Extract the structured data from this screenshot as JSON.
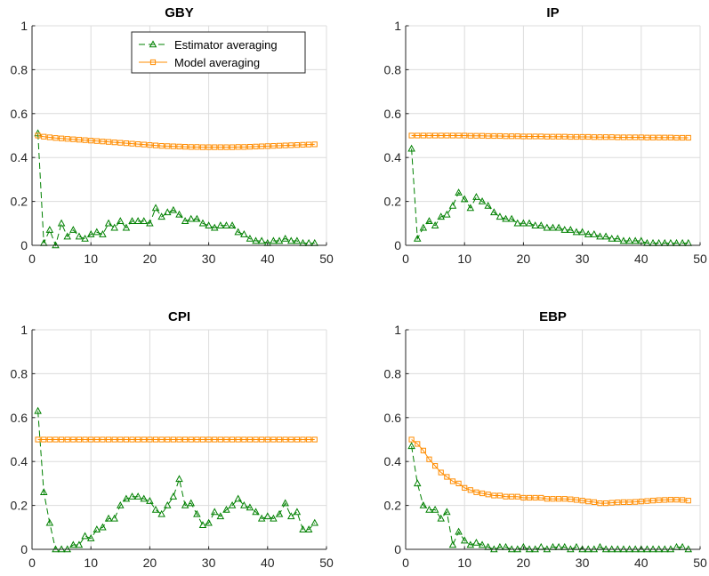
{
  "chart_data": [
    {
      "type": "line",
      "title": "GBY",
      "xlim": [
        0,
        50
      ],
      "ylim": [
        0,
        1
      ],
      "xticks": [
        0,
        10,
        20,
        30,
        40,
        50
      ],
      "yticks": [
        0,
        0.2,
        0.4,
        0.6,
        0.8,
        1
      ],
      "xtick_labels": [
        "0",
        "10",
        "20",
        "30",
        "40",
        "50"
      ],
      "ytick_labels": [
        "0",
        "0.2",
        "0.4",
        "0.6",
        "0.8",
        "1"
      ],
      "grid": true,
      "legend": {
        "show": true,
        "placement": "top-right"
      },
      "x": [
        1,
        2,
        3,
        4,
        5,
        6,
        7,
        8,
        9,
        10,
        11,
        12,
        13,
        14,
        15,
        16,
        17,
        18,
        19,
        20,
        21,
        22,
        23,
        24,
        25,
        26,
        27,
        28,
        29,
        30,
        31,
        32,
        33,
        34,
        35,
        36,
        37,
        38,
        39,
        40,
        41,
        42,
        43,
        44,
        45,
        46,
        47,
        48
      ],
      "series": [
        {
          "name": "Estimator averaging",
          "color": "#008000",
          "marker": "triangle",
          "linestyle": "dashed",
          "values": [
            0.51,
            0.01,
            0.07,
            0.0,
            0.1,
            0.04,
            0.07,
            0.04,
            0.03,
            0.05,
            0.06,
            0.05,
            0.1,
            0.08,
            0.11,
            0.08,
            0.11,
            0.11,
            0.11,
            0.1,
            0.17,
            0.13,
            0.15,
            0.16,
            0.14,
            0.11,
            0.12,
            0.12,
            0.1,
            0.09,
            0.08,
            0.09,
            0.09,
            0.09,
            0.06,
            0.05,
            0.03,
            0.02,
            0.02,
            0.01,
            0.02,
            0.02,
            0.03,
            0.02,
            0.02,
            0.01,
            0.01,
            0.01
          ]
        },
        {
          "name": "Model averaging",
          "color": "#ff8c00",
          "marker": "square",
          "linestyle": "solid",
          "values": [
            0.5,
            0.495,
            0.492,
            0.489,
            0.487,
            0.485,
            0.483,
            0.481,
            0.479,
            0.477,
            0.475,
            0.473,
            0.471,
            0.469,
            0.467,
            0.465,
            0.463,
            0.461,
            0.459,
            0.457,
            0.455,
            0.453,
            0.452,
            0.451,
            0.45,
            0.449,
            0.448,
            0.448,
            0.447,
            0.447,
            0.447,
            0.447,
            0.447,
            0.447,
            0.448,
            0.448,
            0.449,
            0.45,
            0.451,
            0.452,
            0.453,
            0.454,
            0.455,
            0.456,
            0.457,
            0.458,
            0.459,
            0.46
          ]
        }
      ]
    },
    {
      "type": "line",
      "title": "IP",
      "xlim": [
        0,
        50
      ],
      "ylim": [
        0,
        1
      ],
      "xticks": [
        0,
        10,
        20,
        30,
        40,
        50
      ],
      "yticks": [
        0,
        0.2,
        0.4,
        0.6,
        0.8,
        1
      ],
      "xtick_labels": [
        "0",
        "10",
        "20",
        "30",
        "40",
        "50"
      ],
      "ytick_labels": [
        "0",
        "0.2",
        "0.4",
        "0.6",
        "0.8",
        "1"
      ],
      "grid": true,
      "legend": {
        "show": false
      },
      "x": [
        1,
        2,
        3,
        4,
        5,
        6,
        7,
        8,
        9,
        10,
        11,
        12,
        13,
        14,
        15,
        16,
        17,
        18,
        19,
        20,
        21,
        22,
        23,
        24,
        25,
        26,
        27,
        28,
        29,
        30,
        31,
        32,
        33,
        34,
        35,
        36,
        37,
        38,
        39,
        40,
        41,
        42,
        43,
        44,
        45,
        46,
        47,
        48
      ],
      "series": [
        {
          "name": "Estimator averaging",
          "color": "#008000",
          "marker": "triangle",
          "linestyle": "dashed",
          "values": [
            0.44,
            0.03,
            0.08,
            0.11,
            0.09,
            0.13,
            0.14,
            0.18,
            0.24,
            0.21,
            0.17,
            0.22,
            0.2,
            0.18,
            0.15,
            0.13,
            0.12,
            0.12,
            0.1,
            0.1,
            0.1,
            0.09,
            0.09,
            0.08,
            0.08,
            0.08,
            0.07,
            0.07,
            0.06,
            0.06,
            0.05,
            0.05,
            0.04,
            0.04,
            0.03,
            0.03,
            0.02,
            0.02,
            0.02,
            0.02,
            0.01,
            0.01,
            0.01,
            0.01,
            0.01,
            0.01,
            0.01,
            0.01
          ]
        },
        {
          "name": "Model averaging",
          "color": "#ff8c00",
          "marker": "square",
          "linestyle": "solid",
          "values": [
            0.5,
            0.5,
            0.5,
            0.5,
            0.5,
            0.5,
            0.5,
            0.5,
            0.5,
            0.5,
            0.499,
            0.499,
            0.499,
            0.498,
            0.498,
            0.498,
            0.497,
            0.497,
            0.497,
            0.496,
            0.496,
            0.496,
            0.496,
            0.495,
            0.495,
            0.495,
            0.495,
            0.494,
            0.494,
            0.494,
            0.494,
            0.493,
            0.493,
            0.493,
            0.493,
            0.492,
            0.492,
            0.492,
            0.492,
            0.492,
            0.491,
            0.491,
            0.491,
            0.491,
            0.491,
            0.49,
            0.49,
            0.49
          ]
        }
      ]
    },
    {
      "type": "line",
      "title": "CPI",
      "xlim": [
        0,
        50
      ],
      "ylim": [
        0,
        1
      ],
      "xticks": [
        0,
        10,
        20,
        30,
        40,
        50
      ],
      "yticks": [
        0,
        0.2,
        0.4,
        0.6,
        0.8,
        1
      ],
      "xtick_labels": [
        "0",
        "10",
        "20",
        "30",
        "40",
        "50"
      ],
      "ytick_labels": [
        "0",
        "0.2",
        "0.4",
        "0.6",
        "0.8",
        "1"
      ],
      "grid": true,
      "legend": {
        "show": false
      },
      "x": [
        1,
        2,
        3,
        4,
        5,
        6,
        7,
        8,
        9,
        10,
        11,
        12,
        13,
        14,
        15,
        16,
        17,
        18,
        19,
        20,
        21,
        22,
        23,
        24,
        25,
        26,
        27,
        28,
        29,
        30,
        31,
        32,
        33,
        34,
        35,
        36,
        37,
        38,
        39,
        40,
        41,
        42,
        43,
        44,
        45,
        46,
        47,
        48
      ],
      "series": [
        {
          "name": "Estimator averaging",
          "color": "#008000",
          "marker": "triangle",
          "linestyle": "dashed",
          "values": [
            0.63,
            0.26,
            0.12,
            0.0,
            0.0,
            0.0,
            0.02,
            0.02,
            0.06,
            0.05,
            0.09,
            0.1,
            0.14,
            0.14,
            0.2,
            0.23,
            0.24,
            0.24,
            0.23,
            0.22,
            0.18,
            0.16,
            0.2,
            0.24,
            0.32,
            0.2,
            0.21,
            0.16,
            0.11,
            0.12,
            0.17,
            0.15,
            0.18,
            0.2,
            0.23,
            0.2,
            0.19,
            0.17,
            0.14,
            0.15,
            0.14,
            0.16,
            0.21,
            0.15,
            0.17,
            0.09,
            0.09,
            0.12
          ]
        },
        {
          "name": "Model averaging",
          "color": "#ff8c00",
          "marker": "square",
          "linestyle": "solid",
          "values": [
            0.5,
            0.5,
            0.5,
            0.5,
            0.5,
            0.5,
            0.5,
            0.5,
            0.5,
            0.5,
            0.5,
            0.5,
            0.5,
            0.5,
            0.5,
            0.5,
            0.5,
            0.5,
            0.5,
            0.5,
            0.5,
            0.5,
            0.5,
            0.5,
            0.5,
            0.5,
            0.5,
            0.5,
            0.5,
            0.5,
            0.5,
            0.5,
            0.5,
            0.5,
            0.5,
            0.5,
            0.5,
            0.5,
            0.5,
            0.5,
            0.5,
            0.5,
            0.5,
            0.5,
            0.5,
            0.5,
            0.5,
            0.5
          ]
        }
      ]
    },
    {
      "type": "line",
      "title": "EBP",
      "xlim": [
        0,
        50
      ],
      "ylim": [
        0,
        1
      ],
      "xticks": [
        0,
        10,
        20,
        30,
        40,
        50
      ],
      "yticks": [
        0,
        0.2,
        0.4,
        0.6,
        0.8,
        1
      ],
      "xtick_labels": [
        "0",
        "10",
        "20",
        "30",
        "40",
        "50"
      ],
      "ytick_labels": [
        "0",
        "0.2",
        "0.4",
        "0.6",
        "0.8",
        "1"
      ],
      "grid": true,
      "legend": {
        "show": false
      },
      "x": [
        1,
        2,
        3,
        4,
        5,
        6,
        7,
        8,
        9,
        10,
        11,
        12,
        13,
        14,
        15,
        16,
        17,
        18,
        19,
        20,
        21,
        22,
        23,
        24,
        25,
        26,
        27,
        28,
        29,
        30,
        31,
        32,
        33,
        34,
        35,
        36,
        37,
        38,
        39,
        40,
        41,
        42,
        43,
        44,
        45,
        46,
        47,
        48
      ],
      "series": [
        {
          "name": "Estimator averaging",
          "color": "#008000",
          "marker": "triangle",
          "linestyle": "dashed",
          "values": [
            0.47,
            0.3,
            0.2,
            0.18,
            0.18,
            0.14,
            0.17,
            0.02,
            0.08,
            0.04,
            0.02,
            0.03,
            0.02,
            0.01,
            0.0,
            0.01,
            0.01,
            0.0,
            0.0,
            0.01,
            0.0,
            0.0,
            0.01,
            0.0,
            0.01,
            0.01,
            0.01,
            0.0,
            0.01,
            0.0,
            0.0,
            0.0,
            0.01,
            0.0,
            0.0,
            0.0,
            0.0,
            0.0,
            0.0,
            0.0,
            0.0,
            0.0,
            0.0,
            0.0,
            0.0,
            0.01,
            0.01,
            0.0
          ]
        },
        {
          "name": "Model averaging",
          "color": "#ff8c00",
          "marker": "square",
          "linestyle": "solid",
          "values": [
            0.5,
            0.48,
            0.45,
            0.41,
            0.38,
            0.35,
            0.33,
            0.31,
            0.3,
            0.28,
            0.27,
            0.26,
            0.255,
            0.25,
            0.245,
            0.245,
            0.24,
            0.24,
            0.24,
            0.235,
            0.235,
            0.235,
            0.235,
            0.23,
            0.23,
            0.23,
            0.23,
            0.228,
            0.225,
            0.222,
            0.218,
            0.215,
            0.21,
            0.21,
            0.212,
            0.214,
            0.215,
            0.215,
            0.216,
            0.218,
            0.22,
            0.222,
            0.224,
            0.225,
            0.226,
            0.226,
            0.225,
            0.222
          ]
        }
      ]
    }
  ]
}
